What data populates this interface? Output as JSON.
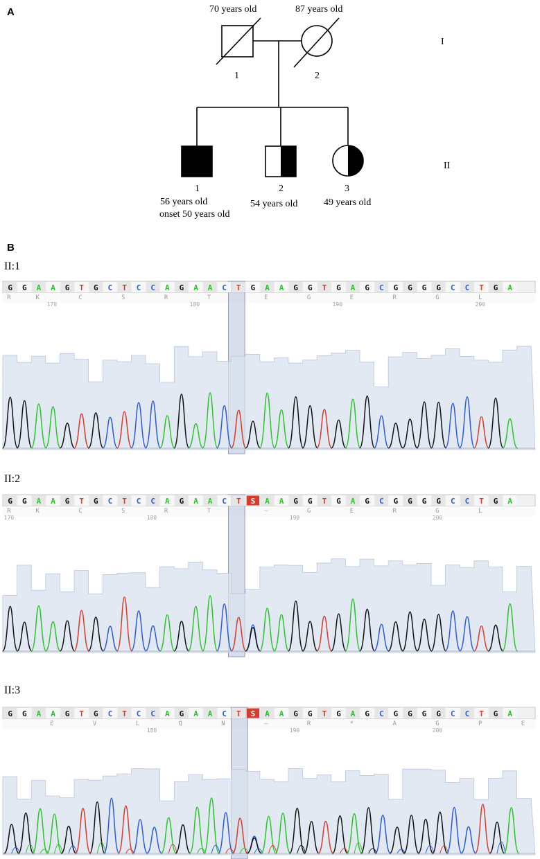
{
  "panel_a": {
    "letter": "A",
    "generation_labels": [
      "I",
      "II"
    ],
    "gen1": [
      {
        "id": "I-1",
        "number": "1",
        "age": "70 years old",
        "sex": "male",
        "status": "deceased",
        "affected": "none"
      },
      {
        "id": "I-2",
        "number": "2",
        "age": "87 years old",
        "sex": "female",
        "status": "deceased",
        "affected": "none"
      }
    ],
    "gen2": [
      {
        "id": "II-1",
        "number": "1",
        "age": "56 years old",
        "onset": "onset 50 years old",
        "sex": "male",
        "affected": "full"
      },
      {
        "id": "II-2",
        "number": "2",
        "age": "54 years old",
        "sex": "male",
        "affected": "half"
      },
      {
        "id": "II-3",
        "number": "3",
        "age": "49 years old",
        "sex": "female",
        "affected": "half"
      }
    ]
  },
  "panel_b": {
    "letter": "B",
    "highlight_index": 15,
    "colors": {
      "A": "#2bc42b",
      "C": "#2b5bd8",
      "G": "#111111",
      "T": "#d83a2b",
      "S": "#d83a2b",
      "highlight": "#b8c3da",
      "quality": "#d9e1ee"
    },
    "tracks": [
      {
        "label": "II:1",
        "bases": [
          "G",
          "G",
          "A",
          "A",
          "G",
          "T",
          "G",
          "C",
          "T",
          "C",
          "C",
          "A",
          "G",
          "A",
          "A",
          "C",
          "T",
          "G",
          "A",
          "A",
          "G",
          "G",
          "T",
          "G",
          "A",
          "G",
          "C",
          "G",
          "G",
          "G",
          "G",
          "C",
          "C",
          "T",
          "G",
          "A"
        ],
        "bases_display": "GGAAGTGCTCCAGAACTGAAGGTGAGCGGGGCCTGA",
        "aa": [
          "R",
          "K",
          "C",
          "S",
          "R",
          "T",
          "E",
          "G",
          "E",
          "R",
          "G",
          "L"
        ],
        "aa_positions": [
          0,
          2,
          5,
          8,
          11,
          14,
          18,
          21,
          24,
          27,
          30,
          33
        ],
        "ticks": [
          {
            "label": "170",
            "pos": 3
          },
          {
            "label": "180",
            "pos": 13
          },
          {
            "label": "190",
            "pos": 23
          },
          {
            "label": "200",
            "pos": 33
          }
        ]
      },
      {
        "label": "II:2",
        "bases": [
          "G",
          "G",
          "A",
          "A",
          "G",
          "T",
          "G",
          "C",
          "T",
          "C",
          "C",
          "A",
          "G",
          "A",
          "A",
          "C",
          "T",
          "S",
          "A",
          "A",
          "G",
          "G",
          "T",
          "G",
          "A",
          "G",
          "C",
          "G",
          "G",
          "G",
          "G",
          "C",
          "C",
          "T",
          "G",
          "A"
        ],
        "aa": [
          "R",
          "K",
          "C",
          "S",
          "R",
          "T",
          "–",
          "G",
          "E",
          "R",
          "G",
          "L"
        ],
        "aa_positions": [
          0,
          2,
          5,
          8,
          11,
          14,
          18,
          21,
          24,
          27,
          30,
          33
        ],
        "ticks": [
          {
            "label": "170",
            "pos": 0
          },
          {
            "label": "180",
            "pos": 10
          },
          {
            "label": "190",
            "pos": 20
          },
          {
            "label": "200",
            "pos": 30
          }
        ]
      },
      {
        "label": "II:3",
        "bases": [
          "G",
          "G",
          "A",
          "A",
          "G",
          "T",
          "G",
          "C",
          "T",
          "C",
          "C",
          "A",
          "G",
          "A",
          "A",
          "C",
          "T",
          "S",
          "A",
          "A",
          "G",
          "G",
          "T",
          "G",
          "A",
          "G",
          "C",
          "G",
          "G",
          "G",
          "G",
          "C",
          "C",
          "T",
          "G",
          "A"
        ],
        "aa": [
          "E",
          "V",
          "L",
          "Q",
          "N",
          "–",
          "R",
          "*",
          "A",
          "G",
          "P",
          "E"
        ],
        "aa_positions": [
          3,
          6,
          9,
          12,
          15,
          18,
          21,
          24,
          27,
          30,
          33,
          36
        ],
        "ticks": [
          {
            "label": "180",
            "pos": 10
          },
          {
            "label": "190",
            "pos": 20
          },
          {
            "label": "200",
            "pos": 30
          }
        ]
      }
    ]
  }
}
